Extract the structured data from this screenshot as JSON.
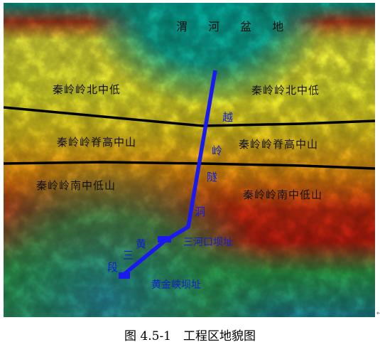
{
  "map": {
    "basin_label": "渭 河 盆 地",
    "regions": {
      "north_left": "秦岭岭北中低",
      "north_right": "秦岭岭北中低",
      "ridge_left": "秦岭岭脊高中山",
      "ridge_right": "秦岭岭脊高中山",
      "south_left": "秦岭岭南中低山",
      "south_right": "秦岭岭南中低山"
    },
    "tunnel_chars": [
      "越",
      "岭",
      "隧",
      "洞"
    ],
    "section_chars": [
      "黄",
      "三",
      "段"
    ],
    "dams": {
      "sanhekou": "三河口坝址",
      "huangjinxia": "黄金峡坝址"
    },
    "colors": {
      "tunnel_line": "#1a1af0",
      "boundary_line": "#000000",
      "label_blue": "#1020d0"
    }
  },
  "caption": "图 4.5-1　工程区地貌图",
  "return_mark": "↵"
}
